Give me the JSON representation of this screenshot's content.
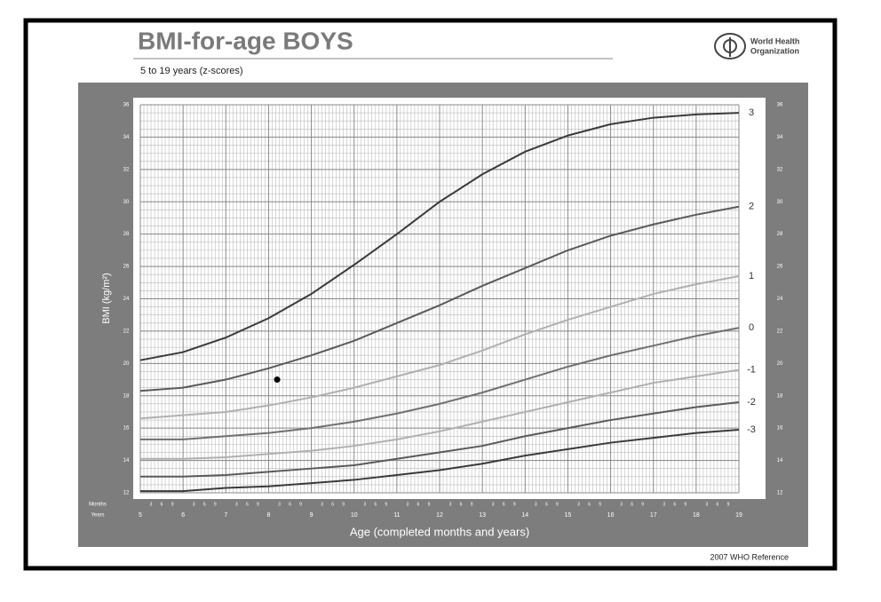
{
  "chart_data": {
    "type": "line",
    "title": "BMI-for-age  BOYS",
    "subtitle": "5 to 19 years (z-scores)",
    "organization": [
      "World Health",
      "Organization"
    ],
    "y_label": "BMI (kg/m²)",
    "x_label": "Age (completed months and years)",
    "months_label": "Months",
    "years_label": "Years",
    "month_ticks": [
      3,
      6,
      9
    ],
    "footer": "2007  WHO Reference",
    "x": [
      5,
      6,
      7,
      8,
      9,
      10,
      11,
      12,
      13,
      14,
      15,
      16,
      17,
      18,
      19
    ],
    "series": [
      {
        "name": "3",
        "color": "#3a3a3a",
        "values": [
          20.2,
          20.7,
          21.6,
          22.8,
          24.3,
          26.1,
          28.0,
          30.0,
          31.7,
          33.1,
          34.1,
          34.8,
          35.2,
          35.4,
          35.5
        ]
      },
      {
        "name": "2",
        "color": "#5a5a5a",
        "values": [
          18.3,
          18.5,
          19.0,
          19.7,
          20.5,
          21.4,
          22.5,
          23.6,
          24.8,
          25.9,
          27.0,
          27.9,
          28.6,
          29.2,
          29.7
        ]
      },
      {
        "name": "1",
        "color": "#b0b0b0",
        "values": [
          16.6,
          16.8,
          17.0,
          17.4,
          17.9,
          18.5,
          19.2,
          19.9,
          20.8,
          21.8,
          22.7,
          23.5,
          24.3,
          24.9,
          25.4
        ]
      },
      {
        "name": "0",
        "color": "#707070",
        "values": [
          15.3,
          15.3,
          15.5,
          15.7,
          16.0,
          16.4,
          16.9,
          17.5,
          18.2,
          19.0,
          19.8,
          20.5,
          21.1,
          21.7,
          22.2
        ]
      },
      {
        "name": "-1",
        "color": "#b0b0b0",
        "values": [
          14.1,
          14.1,
          14.2,
          14.4,
          14.6,
          14.9,
          15.3,
          15.8,
          16.4,
          17.0,
          17.6,
          18.2,
          18.8,
          19.2,
          19.6
        ]
      },
      {
        "name": "-2",
        "color": "#5a5a5a",
        "values": [
          13.0,
          13.0,
          13.1,
          13.3,
          13.5,
          13.7,
          14.1,
          14.5,
          14.9,
          15.5,
          16.0,
          16.5,
          16.9,
          17.3,
          17.6
        ]
      },
      {
        "name": "-3",
        "color": "#3a3a3a",
        "values": [
          12.1,
          12.1,
          12.3,
          12.4,
          12.6,
          12.8,
          13.1,
          13.4,
          13.8,
          14.3,
          14.7,
          15.1,
          15.4,
          15.7,
          15.9
        ]
      }
    ],
    "marker": {
      "x": 8.2,
      "y": 19.0,
      "color": "#000000"
    },
    "xlim": [
      5,
      19
    ],
    "xticks": [
      5,
      6,
      7,
      8,
      9,
      10,
      11,
      12,
      13,
      14,
      15,
      16,
      17,
      18,
      19
    ],
    "ylim": [
      12,
      36
    ],
    "yticks": [
      12,
      14,
      16,
      18,
      20,
      22,
      24,
      26,
      28,
      30,
      32,
      34,
      36
    ],
    "grid": true
  }
}
